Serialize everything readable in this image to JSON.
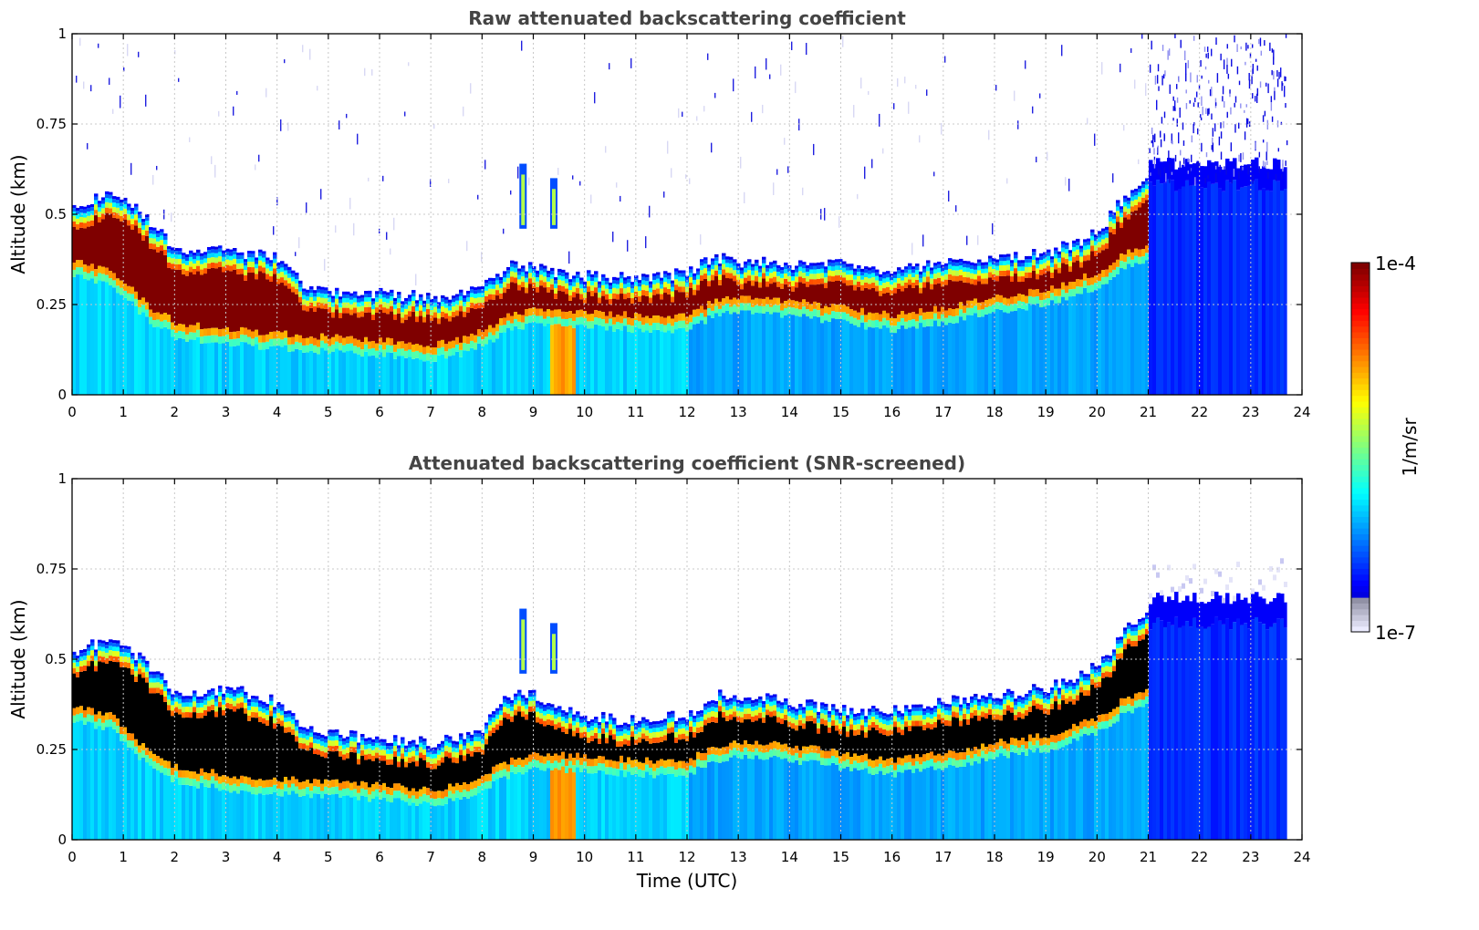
{
  "chart_data": [
    {
      "type": "heatmap",
      "title": "Raw attenuated backscattering coefficient",
      "xlabel": "",
      "ylabel": "Altitude (km)",
      "xlim": [
        0,
        24
      ],
      "ylim": [
        0,
        1
      ],
      "xticks": [
        "0",
        "1",
        "2",
        "3",
        "4",
        "5",
        "6",
        "7",
        "8",
        "9",
        "10",
        "11",
        "12",
        "13",
        "14",
        "15",
        "16",
        "17",
        "18",
        "19",
        "20",
        "21",
        "22",
        "23",
        "24"
      ],
      "yticks": [
        "0",
        "0.25",
        "0.5",
        "0.75",
        "1"
      ],
      "grid": true,
      "screened": false,
      "data_end_hour": 23.7,
      "layer_top_km": [
        [
          0,
          0.52
        ],
        [
          0.8,
          0.56
        ],
        [
          1.5,
          0.48
        ],
        [
          2,
          0.4
        ],
        [
          3,
          0.4
        ],
        [
          4,
          0.38
        ],
        [
          4.5,
          0.3
        ],
        [
          5,
          0.29
        ],
        [
          6,
          0.28
        ],
        [
          7,
          0.27
        ],
        [
          7.5,
          0.28
        ],
        [
          8,
          0.31
        ],
        [
          8.5,
          0.36
        ],
        [
          9,
          0.35
        ],
        [
          10,
          0.33
        ],
        [
          11,
          0.32
        ],
        [
          12,
          0.34
        ],
        [
          12.5,
          0.38
        ],
        [
          13,
          0.37
        ],
        [
          14,
          0.36
        ],
        [
          15,
          0.36
        ],
        [
          16,
          0.34
        ],
        [
          17,
          0.37
        ],
        [
          18,
          0.38
        ],
        [
          19,
          0.39
        ],
        [
          20,
          0.45
        ],
        [
          20.5,
          0.55
        ],
        [
          21,
          0.62
        ]
      ],
      "layer_bottom_km": [
        [
          0,
          0.33
        ],
        [
          0.8,
          0.3
        ],
        [
          1.5,
          0.2
        ],
        [
          2,
          0.16
        ],
        [
          3,
          0.14
        ],
        [
          4,
          0.13
        ],
        [
          5,
          0.12
        ],
        [
          6,
          0.11
        ],
        [
          7,
          0.1
        ],
        [
          7.5,
          0.11
        ],
        [
          8,
          0.14
        ],
        [
          8.5,
          0.18
        ],
        [
          9,
          0.2
        ],
        [
          10,
          0.19
        ],
        [
          11,
          0.18
        ],
        [
          12,
          0.18
        ],
        [
          12.5,
          0.22
        ],
        [
          13,
          0.23
        ],
        [
          14,
          0.22
        ],
        [
          15,
          0.2
        ],
        [
          16,
          0.18
        ],
        [
          17,
          0.2
        ],
        [
          18,
          0.23
        ],
        [
          19,
          0.25
        ],
        [
          20,
          0.3
        ],
        [
          20.5,
          0.35
        ],
        [
          21,
          0.38
        ]
      ]
    },
    {
      "type": "heatmap",
      "title": "Attenuated backscattering coefficient (SNR-screened)",
      "xlabel": "Time (UTC)",
      "ylabel": "Altitude (km)",
      "xlim": [
        0,
        24
      ],
      "ylim": [
        0,
        1
      ],
      "xticks": [
        "0",
        "1",
        "2",
        "3",
        "4",
        "5",
        "6",
        "7",
        "8",
        "9",
        "10",
        "11",
        "12",
        "13",
        "14",
        "15",
        "16",
        "17",
        "18",
        "19",
        "20",
        "21",
        "22",
        "23",
        "24"
      ],
      "yticks": [
        "0",
        "0.25",
        "0.5",
        "0.75",
        "1"
      ],
      "grid": true,
      "screened": true,
      "data_end_hour": 23.7,
      "layer_top_km": [
        [
          0,
          0.52
        ],
        [
          0.8,
          0.56
        ],
        [
          1.5,
          0.48
        ],
        [
          2,
          0.4
        ],
        [
          3,
          0.42
        ],
        [
          4,
          0.38
        ],
        [
          4.5,
          0.3
        ],
        [
          5,
          0.29
        ],
        [
          6,
          0.28
        ],
        [
          7,
          0.27
        ],
        [
          7.5,
          0.28
        ],
        [
          8,
          0.31
        ],
        [
          8.5,
          0.4
        ],
        [
          9,
          0.4
        ],
        [
          10,
          0.34
        ],
        [
          11,
          0.33
        ],
        [
          12,
          0.35
        ],
        [
          12.5,
          0.4
        ],
        [
          13,
          0.4
        ],
        [
          14,
          0.38
        ],
        [
          15,
          0.36
        ],
        [
          16,
          0.36
        ],
        [
          17,
          0.38
        ],
        [
          18,
          0.4
        ],
        [
          19,
          0.42
        ],
        [
          20,
          0.48
        ],
        [
          20.5,
          0.58
        ],
        [
          21,
          0.64
        ]
      ],
      "layer_bottom_km": [
        [
          0,
          0.33
        ],
        [
          0.8,
          0.3
        ],
        [
          1.5,
          0.2
        ],
        [
          2,
          0.16
        ],
        [
          3,
          0.14
        ],
        [
          4,
          0.13
        ],
        [
          5,
          0.12
        ],
        [
          6,
          0.11
        ],
        [
          7,
          0.1
        ],
        [
          7.5,
          0.11
        ],
        [
          8,
          0.14
        ],
        [
          8.5,
          0.18
        ],
        [
          9,
          0.2
        ],
        [
          10,
          0.19
        ],
        [
          11,
          0.18
        ],
        [
          12,
          0.18
        ],
        [
          12.5,
          0.22
        ],
        [
          13,
          0.23
        ],
        [
          14,
          0.22
        ],
        [
          15,
          0.2
        ],
        [
          16,
          0.18
        ],
        [
          17,
          0.2
        ],
        [
          18,
          0.23
        ],
        [
          19,
          0.25
        ],
        [
          20,
          0.3
        ],
        [
          20.5,
          0.35
        ],
        [
          21,
          0.38
        ]
      ]
    }
  ],
  "colorbar": {
    "label": "1/m/sr",
    "max_label": "1e-4",
    "min_label": "1e-7",
    "colormap": "jet"
  }
}
